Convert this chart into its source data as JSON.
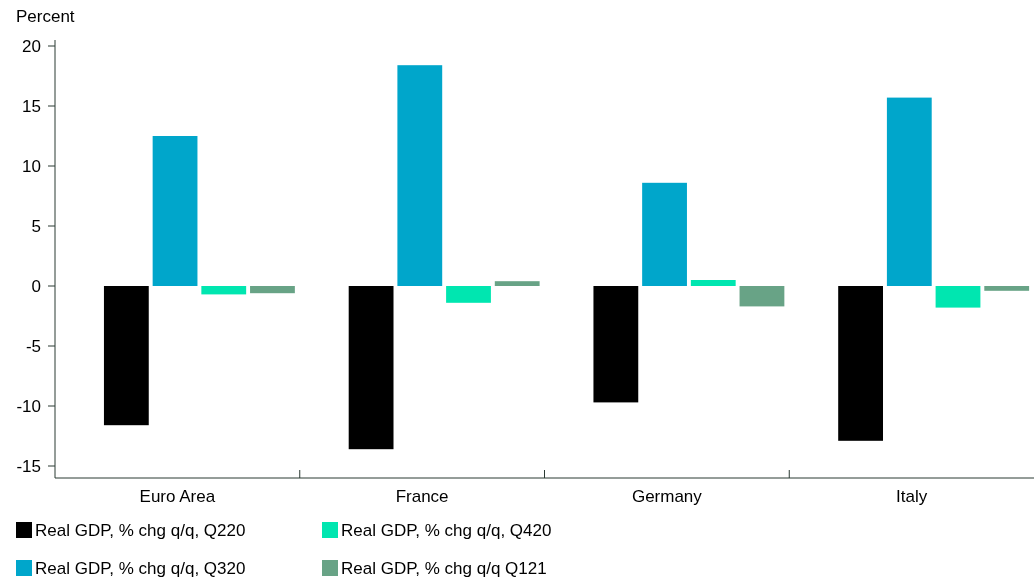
{
  "chart_data": {
    "type": "bar",
    "ylabel": "Percent",
    "categories": [
      "Euro Area",
      "France",
      "Germany",
      "Italy"
    ],
    "series": [
      {
        "name": "Real GDP, % chg q/q, Q220",
        "color": "#000000",
        "values": [
          -11.6,
          -13.6,
          -9.7,
          -12.9
        ]
      },
      {
        "name": "Real GDP, % chg q/q, Q320",
        "color": "#00a6cb",
        "values": [
          12.5,
          18.4,
          8.6,
          15.7
        ]
      },
      {
        "name": "Real GDP, % chg q/q, Q420",
        "color": "#00e6b0",
        "values": [
          -0.7,
          -1.4,
          0.5,
          -1.8
        ]
      },
      {
        "name": "Real GDP, % chg q/q Q121",
        "color": "#68a386",
        "values": [
          -0.6,
          0.4,
          -1.7,
          -0.4
        ]
      }
    ],
    "ylim": [
      -16,
      20.5
    ],
    "yticks": [
      -15,
      -10,
      -5,
      0,
      5,
      10,
      15,
      20
    ],
    "grid": false,
    "legend": "bottom"
  }
}
